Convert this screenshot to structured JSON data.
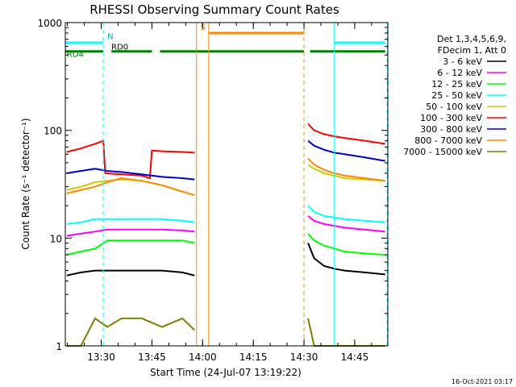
{
  "chart_data": {
    "type": "line",
    "title": "RHESSI Observing Summary Count Rates",
    "xlabel": "Start Time (24-Jul-07 13:19:22)",
    "ylabel": "Count Rate (s⁻¹ detector⁻¹)",
    "yscale": "log",
    "ylim": [
      1,
      1000
    ],
    "xlim": [
      13.3228,
      14.9133
    ],
    "x_unit": "hour of day (UT)",
    "x_ticks": [
      {
        "value": 13.5,
        "label": "13:30"
      },
      {
        "value": 13.75,
        "label": "13:45"
      },
      {
        "value": 14.0,
        "label": "14:00"
      },
      {
        "value": 14.25,
        "label": "14:15"
      },
      {
        "value": 14.5,
        "label": "14:30"
      },
      {
        "value": 14.75,
        "label": "14:45"
      }
    ],
    "y_ticks": [
      {
        "value": 1,
        "label": "1"
      },
      {
        "value": 10,
        "label": "10"
      },
      {
        "value": 100,
        "label": "100"
      },
      {
        "value": 1000,
        "label": "1000"
      }
    ],
    "grid": false,
    "legend": {
      "placement": "right",
      "header": [
        "Det 1,3,4,5,6,9,",
        "FDecim 1, Att 0"
      ]
    },
    "segments": [
      [
        13.3228,
        13.97
      ],
      [
        14.52,
        14.9
      ]
    ],
    "series": [
      {
        "name": "3 - 6 keV",
        "color": "#000000",
        "x": [
          13.33,
          13.4,
          13.47,
          13.53,
          13.6,
          13.7,
          13.8,
          13.9,
          13.96,
          14.52,
          14.55,
          14.6,
          14.65,
          14.7,
          14.8,
          14.9
        ],
        "y": [
          4.5,
          4.8,
          5.0,
          5.0,
          5.0,
          5.0,
          5.0,
          4.8,
          4.5,
          9.0,
          6.5,
          5.5,
          5.2,
          5.0,
          4.8,
          4.6
        ]
      },
      {
        "name": "6 - 12 keV",
        "color": "#ff00ff",
        "x": [
          13.33,
          13.4,
          13.47,
          13.53,
          13.6,
          13.7,
          13.8,
          13.9,
          13.96,
          14.52,
          14.55,
          14.6,
          14.65,
          14.7,
          14.8,
          14.9
        ],
        "y": [
          10.5,
          11.0,
          11.5,
          12.0,
          12.0,
          12.0,
          12.0,
          11.8,
          11.5,
          16.0,
          14.5,
          13.5,
          13.0,
          12.5,
          12.0,
          11.5
        ]
      },
      {
        "name": "12 - 25 keV",
        "color": "#00ff00",
        "x": [
          13.33,
          13.4,
          13.47,
          13.53,
          13.6,
          13.7,
          13.8,
          13.9,
          13.96,
          14.52,
          14.55,
          14.6,
          14.65,
          14.7,
          14.8,
          14.9
        ],
        "y": [
          7.0,
          7.5,
          8.0,
          9.5,
          9.5,
          9.5,
          9.5,
          9.5,
          9.0,
          11.0,
          9.5,
          8.5,
          8.0,
          7.5,
          7.2,
          7.0
        ]
      },
      {
        "name": "25 - 50 keV",
        "color": "#00ffff",
        "x": [
          13.33,
          13.4,
          13.47,
          13.53,
          13.6,
          13.7,
          13.8,
          13.9,
          13.96,
          14.52,
          14.55,
          14.6,
          14.65,
          14.7,
          14.8,
          14.9
        ],
        "y": [
          13.5,
          14.0,
          15.0,
          15.0,
          15.0,
          15.0,
          15.0,
          14.5,
          14.0,
          20.0,
          17.5,
          16.0,
          15.5,
          15.0,
          14.5,
          14.0
        ]
      },
      {
        "name": "50 - 100 keV",
        "color": "#cccc00",
        "x": [
          13.33,
          13.4,
          13.47,
          13.53,
          13.6,
          13.7,
          13.8,
          13.9,
          13.96,
          14.52,
          14.55,
          14.6,
          14.65,
          14.7,
          14.8,
          14.9
        ],
        "y": [
          28.0,
          30.0,
          33.0,
          34.0,
          35.0,
          34.0,
          31.0,
          27.0,
          25.0,
          48.0,
          44.0,
          40.0,
          38.0,
          36.0,
          35.0,
          34.0
        ]
      },
      {
        "name": "100 - 300 keV",
        "color": "#ff0000",
        "x": [
          13.33,
          13.4,
          13.47,
          13.51,
          13.52,
          13.6,
          13.7,
          13.74,
          13.75,
          13.8,
          13.9,
          13.96,
          14.52,
          14.55,
          14.6,
          14.65,
          14.7,
          14.8,
          14.9
        ],
        "y": [
          63.0,
          68.0,
          75.0,
          80.0,
          40.0,
          39.0,
          38.0,
          36.0,
          65.0,
          64.0,
          63.0,
          62.0,
          115.0,
          100.0,
          92.0,
          88.0,
          85.0,
          80.0,
          75.0
        ]
      },
      {
        "name": "300 - 800 keV",
        "color": "#0000cc",
        "x": [
          13.33,
          13.4,
          13.47,
          13.53,
          13.6,
          13.7,
          13.8,
          13.9,
          13.96,
          14.52,
          14.55,
          14.6,
          14.65,
          14.7,
          14.8,
          14.9
        ],
        "y": [
          40.0,
          42.0,
          44.0,
          42.0,
          41.0,
          39.0,
          37.0,
          36.0,
          35.0,
          80.0,
          72.0,
          66.0,
          62.0,
          60.0,
          56.0,
          52.0
        ]
      },
      {
        "name": "800 - 7000 keV",
        "color": "#ff8800",
        "x": [
          13.33,
          13.4,
          13.47,
          13.53,
          13.6,
          13.7,
          13.8,
          13.9,
          13.96,
          14.52,
          14.55,
          14.6,
          14.65,
          14.7,
          14.8,
          14.9
        ],
        "y": [
          26.0,
          28.0,
          30.0,
          33.0,
          36.0,
          34.0,
          31.0,
          27.0,
          25.0,
          55.0,
          48.0,
          43.0,
          40.0,
          38.0,
          36.0,
          34.0
        ]
      },
      {
        "name": "7000 - 15000 keV",
        "color": "#808000",
        "x": [
          13.33,
          13.4,
          13.47,
          13.53,
          13.6,
          13.7,
          13.8,
          13.9,
          13.96,
          14.52,
          14.55,
          14.6,
          14.65,
          14.7,
          14.8,
          14.9
        ],
        "y": [
          1.0,
          1.0,
          1.8,
          1.5,
          1.8,
          1.8,
          1.5,
          1.8,
          1.4,
          1.8,
          1.0,
          1.0,
          1.0,
          1.0,
          1.0,
          1.0
        ]
      }
    ],
    "flag_lines": [
      {
        "label": "N",
        "color": "#00ffff",
        "segments": [
          [
            13.3228,
            13.51
          ],
          [
            14.65,
            14.9
          ]
        ],
        "y_level": 650
      },
      {
        "label": "RD0",
        "color": "#008000",
        "segments": [
          [
            13.55,
            13.75
          ]
        ],
        "y_level": 540
      },
      {
        "label": "RD4",
        "color": "#008000",
        "segments": [
          [
            13.3228,
            13.51
          ],
          [
            13.79,
            14.5
          ],
          [
            14.53,
            14.9
          ]
        ],
        "y_level": 540
      },
      {
        "label": "S",
        "color": "#ff8800",
        "segments": [
          [
            14.03,
            14.5
          ]
        ],
        "y_level": 800
      }
    ],
    "markers": [
      {
        "x": 13.51,
        "color": "#00ffff",
        "style": "dashed"
      },
      {
        "x": 13.97,
        "color": "#ff8800",
        "style": "solid"
      },
      {
        "x": 14.03,
        "color": "#ff8800",
        "style": "solid"
      },
      {
        "x": 14.5,
        "color": "#ff8800",
        "style": "dashed"
      },
      {
        "x": 14.65,
        "color": "#00ffff",
        "style": "solid"
      },
      {
        "x": 14.91,
        "color": "#00ffff",
        "style": "dashed"
      }
    ]
  },
  "footer": {
    "timestamp": "16-Oct-2021 03:17"
  }
}
